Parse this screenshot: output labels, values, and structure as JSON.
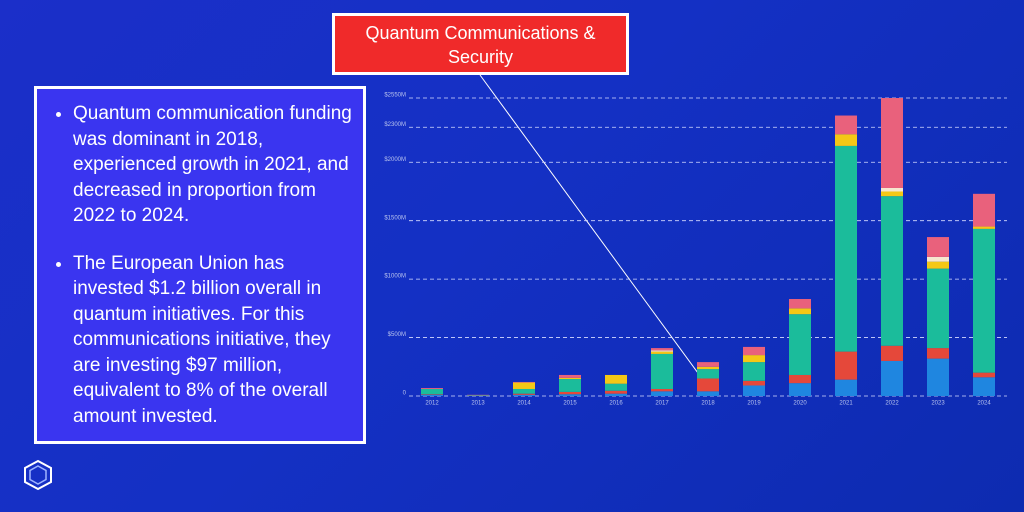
{
  "callout": "Quantum Communications & Security",
  "bullets": [
    "Quantum communication funding was dominant in 2018, experienced growth in 2021, and decreased in proportion from 2022 to 2024.",
    "The European Union has invested $1.2 billion overall in quantum initiatives. For this communications initiative, they are investing $97 million, equivalent to 8% of the overall amount invested."
  ],
  "chart_data": {
    "type": "bar",
    "stacked": true,
    "grid": true,
    "categories": [
      "2012",
      "2013",
      "2014",
      "2015",
      "2016",
      "2017",
      "2018",
      "2019",
      "2020",
      "2021",
      "2022",
      "2023",
      "2024"
    ],
    "series": [
      {
        "color": "#1f86e0",
        "values": [
          10,
          0,
          10,
          15,
          20,
          40,
          40,
          90,
          110,
          140,
          300,
          320,
          160
        ]
      },
      {
        "color": "#e5483a",
        "values": [
          5,
          0,
          10,
          20,
          25,
          20,
          110,
          40,
          70,
          240,
          130,
          90,
          40
        ]
      },
      {
        "color": "#1bbc9b",
        "values": [
          45,
          5,
          40,
          110,
          60,
          300,
          80,
          160,
          520,
          1760,
          1280,
          680,
          1230
        ]
      },
      {
        "color": "#f4c816",
        "values": [
          0,
          0,
          55,
          10,
          75,
          20,
          20,
          60,
          50,
          100,
          40,
          60,
          20
        ]
      },
      {
        "color": "#f6e7cf",
        "values": [
          0,
          0,
          0,
          0,
          0,
          10,
          0,
          0,
          0,
          0,
          30,
          40,
          0
        ]
      },
      {
        "color": "#e9617c",
        "values": [
          8,
          5,
          5,
          25,
          0,
          20,
          40,
          70,
          80,
          160,
          770,
          170,
          280
        ]
      }
    ],
    "ylim": [
      0,
      2550
    ],
    "yticks": [
      {
        "value": 0,
        "label": "0"
      },
      {
        "value": 500,
        "label": "$500M"
      },
      {
        "value": 1000,
        "label": "$1000M"
      },
      {
        "value": 1500,
        "label": "$1500M"
      },
      {
        "value": 2000,
        "label": "$2000M"
      },
      {
        "value": 2300,
        "label": "$2300M"
      },
      {
        "value": 2550,
        "label": "$2550M"
      }
    ]
  }
}
